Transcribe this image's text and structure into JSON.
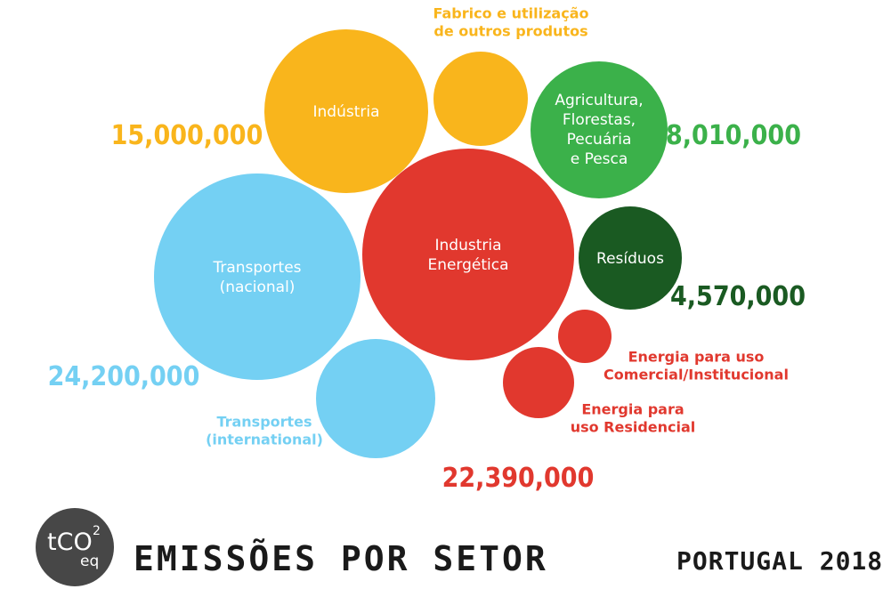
{
  "chart_data": {
    "type": "bubble",
    "title": "EMISSÕES POR SETOR",
    "subtitle": "PORTUGAL 2018",
    "unit_badge": {
      "main": "tCO",
      "sup": "2",
      "sub": "eq"
    },
    "groups": [
      {
        "name": "industry",
        "color": "#F9B51C",
        "total_label": "15,000,000",
        "total": 15000000,
        "bubbles": [
          {
            "label": [
              "Indústria"
            ],
            "color": "#F9B51C"
          },
          {
            "label": [],
            "annotation": [
              "Fabrico e utilização",
              "de outros produtos"
            ],
            "color": "#F9B51C"
          }
        ]
      },
      {
        "name": "agriculture",
        "color": "#3BB14A",
        "total_label": "8,010,000",
        "total": 8010000,
        "bubbles": [
          {
            "label": [
              "Agricultura,",
              "Florestas,",
              "Pecuária",
              "e Pesca"
            ],
            "color": "#3BB14A"
          }
        ]
      },
      {
        "name": "waste",
        "color": "#1A5A22",
        "total_label": "4,570,000",
        "total": 4570000,
        "bubbles": [
          {
            "label": [
              "Resíduos"
            ],
            "color": "#1A5A22"
          }
        ]
      },
      {
        "name": "energy",
        "color": "#E1382E",
        "total_label": "22,390,000",
        "total": 22390000,
        "bubbles": [
          {
            "label": [
              "Industria",
              "Energética"
            ],
            "color": "#E1382E"
          },
          {
            "label": [],
            "annotation": [
              "Energia para uso",
              "Comercial/Institucional"
            ],
            "color": "#E1382E"
          },
          {
            "label": [],
            "annotation": [
              "Energia para",
              "uso Residencial"
            ],
            "color": "#E1382E"
          }
        ]
      },
      {
        "name": "transport",
        "color": "#74D0F3",
        "total_label": "24,200,000",
        "total": 24200000,
        "bubbles": [
          {
            "label": [
              "Transportes",
              "(nacional)"
            ],
            "color": "#74D0F3"
          },
          {
            "label": [],
            "annotation": [
              "Transportes",
              "(international)"
            ],
            "color": "#74D0F3"
          }
        ]
      }
    ]
  }
}
